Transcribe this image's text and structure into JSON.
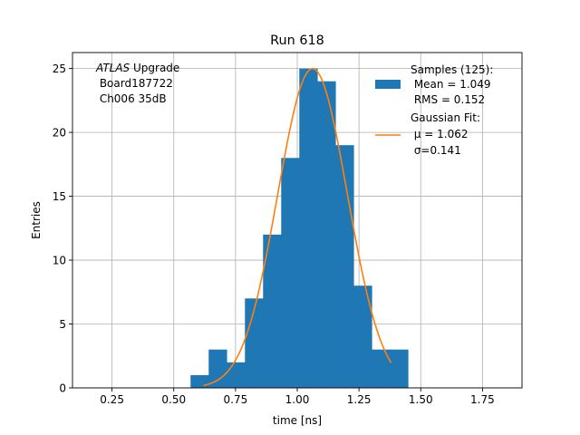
{
  "chart_data": {
    "type": "bar",
    "title": "Run 618",
    "xlabel": "time [ns]",
    "ylabel": "Entries",
    "xlim": [
      0.09,
      1.91
    ],
    "ylim": [
      0,
      26.25
    ],
    "grid": true,
    "xticks": [
      {
        "value": 0.25,
        "label": "0.25"
      },
      {
        "value": 0.5,
        "label": "0.50"
      },
      {
        "value": 0.75,
        "label": "0.75"
      },
      {
        "value": 1.0,
        "label": "1.00"
      },
      {
        "value": 1.25,
        "label": "1.25"
      },
      {
        "value": 1.5,
        "label": "1.50"
      },
      {
        "value": 1.75,
        "label": "1.75"
      }
    ],
    "yticks": [
      {
        "value": 0,
        "label": "0"
      },
      {
        "value": 5,
        "label": "5"
      },
      {
        "value": 10,
        "label": "10"
      },
      {
        "value": 15,
        "label": "15"
      },
      {
        "value": 20,
        "label": "20"
      },
      {
        "value": 25,
        "label": "25"
      }
    ],
    "histogram": {
      "color": "#1f77b4",
      "bin_edges": [
        0.568,
        0.6414,
        0.7148,
        0.7882,
        0.8616,
        0.935,
        1.0084,
        1.0818,
        1.1552,
        1.2286,
        1.302,
        1.3754,
        1.4488
      ],
      "counts": [
        1,
        3,
        2,
        7,
        12,
        18,
        25,
        24,
        19,
        8,
        3,
        3
      ]
    },
    "fit": {
      "color": "#ff7f0e",
      "mu": 1.062,
      "sigma": 0.141,
      "amplitude": 25,
      "x_range": [
        0.62,
        1.38
      ]
    },
    "annotation": {
      "italic_part": "ATLAS",
      "rest_line1": " Upgrade",
      "line2": " Board187722",
      "line3": " Ch006 35dB"
    },
    "legend": {
      "placement": "top-right",
      "samples": {
        "line1": "Samples (125):",
        "line2": " Mean = 1.049",
        "line3": " RMS = 0.152"
      },
      "fit": {
        "line1": "Gaussian Fit:",
        "mu_label": " μ = 1.062",
        "sigma_label": " σ=0.141"
      }
    }
  }
}
